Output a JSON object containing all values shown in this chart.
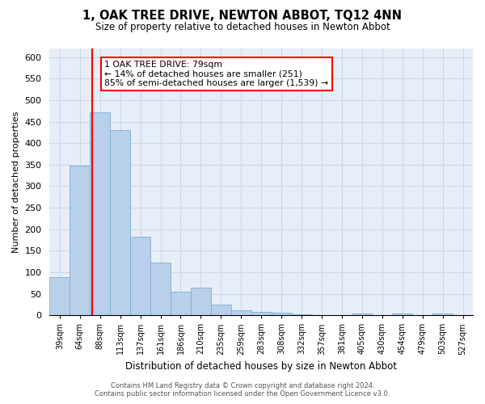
{
  "title": "1, OAK TREE DRIVE, NEWTON ABBOT, TQ12 4NN",
  "subtitle": "Size of property relative to detached houses in Newton Abbot",
  "xlabel": "Distribution of detached houses by size in Newton Abbot",
  "ylabel": "Number of detached properties",
  "bar_labels": [
    "39sqm",
    "64sqm",
    "88sqm",
    "113sqm",
    "137sqm",
    "161sqm",
    "186sqm",
    "210sqm",
    "235sqm",
    "259sqm",
    "283sqm",
    "308sqm",
    "332sqm",
    "357sqm",
    "381sqm",
    "405sqm",
    "430sqm",
    "454sqm",
    "479sqm",
    "503sqm",
    "527sqm"
  ],
  "bar_values": [
    88,
    348,
    472,
    430,
    183,
    122,
    55,
    65,
    24,
    12,
    8,
    5,
    2,
    1,
    0,
    4,
    0,
    4,
    0,
    4,
    0
  ],
  "bar_color": "#b8d0ea",
  "bar_edge_color": "#7aafd4",
  "property_line_label": "1 OAK TREE DRIVE: 79sqm",
  "annotation_line1": "← 14% of detached houses are smaller (251)",
  "annotation_line2": "85% of semi-detached houses are larger (1,539) →",
  "ylim": [
    0,
    620
  ],
  "yticks": [
    0,
    50,
    100,
    150,
    200,
    250,
    300,
    350,
    400,
    450,
    500,
    550,
    600
  ],
  "grid_color": "#c8d8ec",
  "background_color": "#e8eef8",
  "footer_line1": "Contains HM Land Registry data © Crown copyright and database right 2024.",
  "footer_line2": "Contains public sector information licensed under the Open Government Licence v3.0."
}
